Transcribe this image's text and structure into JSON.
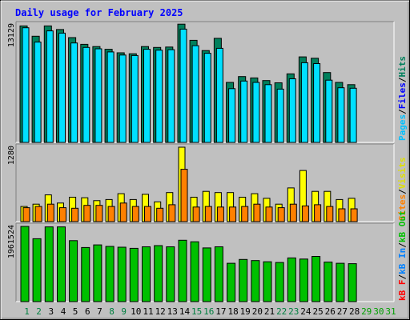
{
  "title": "Daily usage for February 2025",
  "colors": {
    "background": "#c0c0c0",
    "title": "#0000ff",
    "hits": "#00805c",
    "files": "#00c0ff",
    "pages": "#00e0ff",
    "visits": "#ffff00",
    "sites": "#ff8000",
    "kbin": "#0080ff",
    "kbout": "#00c000",
    "kbf": "#ff0000",
    "weekday_label": "#008040",
    "weekend_label": "#00a000",
    "empty_label": "#00a000"
  },
  "legend": {
    "top": [
      {
        "text": "Pages",
        "color": "#00c0ff"
      },
      {
        "text": "/",
        "color": "#000000"
      },
      {
        "text": "Files",
        "color": "#0000ff"
      },
      {
        "text": "/",
        "color": "#000000"
      },
      {
        "text": "Hits",
        "color": "#00805c"
      }
    ],
    "middle": [
      {
        "text": "Sites",
        "color": "#ff8000"
      },
      {
        "text": "/",
        "color": "#000000"
      },
      {
        "text": "Visits",
        "color": "#e0e000"
      }
    ],
    "bottom": [
      {
        "text": "kB F",
        "color": "#ff0000"
      },
      {
        "text": "/",
        "color": "#000000"
      },
      {
        "text": "kB In",
        "color": "#0080ff"
      },
      {
        "text": "/",
        "color": "#000000"
      },
      {
        "text": "kB Out",
        "color": "#00c000"
      }
    ]
  },
  "chart_data": [
    {
      "type": "bar",
      "panel": "hits",
      "ymax_label": "13129",
      "ylim": [
        0,
        13129
      ],
      "categories": [
        "1",
        "2",
        "3",
        "4",
        "5",
        "6",
        "7",
        "8",
        "9",
        "10",
        "11",
        "12",
        "13",
        "14",
        "15",
        "16",
        "17",
        "18",
        "19",
        "20",
        "21",
        "22",
        "23",
        "24",
        "25",
        "26",
        "27",
        "28",
        "29",
        "30",
        "31"
      ],
      "series": [
        {
          "name": "Hits",
          "values": [
            13000,
            11850,
            13000,
            12600,
            11700,
            10950,
            10700,
            10400,
            10000,
            9900,
            10700,
            10600,
            10650,
            13200,
            11400,
            10250,
            11620,
            6700,
            7350,
            7200,
            6900,
            6650,
            7650,
            9550,
            9400,
            7800,
            6700,
            6450,
            0,
            0,
            0
          ]
        },
        {
          "name": "Pages",
          "values": [
            12800,
            11200,
            12450,
            12200,
            11100,
            10600,
            10450,
            10100,
            9750,
            9700,
            10400,
            10300,
            10350,
            12650,
            10800,
            9950,
            10500,
            6000,
            6850,
            6700,
            6450,
            5950,
            7100,
            8900,
            8800,
            6950,
            6100,
            6050,
            0,
            0,
            0
          ]
        }
      ]
    },
    {
      "type": "bar",
      "panel": "visits",
      "ymax_label": "1280",
      "ylim": [
        0,
        1280
      ],
      "categories": [
        "1",
        "2",
        "3",
        "4",
        "5",
        "6",
        "7",
        "8",
        "9",
        "10",
        "11",
        "12",
        "13",
        "14",
        "15",
        "16",
        "17",
        "18",
        "19",
        "20",
        "21",
        "22",
        "23",
        "24",
        "25",
        "26",
        "27",
        "28",
        "29",
        "30",
        "31"
      ],
      "series": [
        {
          "name": "Visits",
          "values": [
            260,
            300,
            460,
            320,
            420,
            410,
            360,
            380,
            480,
            380,
            470,
            340,
            500,
            1280,
            420,
            520,
            500,
            500,
            420,
            480,
            400,
            300,
            580,
            880,
            520,
            520,
            380,
            400,
            0,
            0,
            0
          ]
        },
        {
          "name": "Sites",
          "values": [
            240,
            260,
            300,
            240,
            230,
            280,
            280,
            260,
            320,
            260,
            260,
            230,
            290,
            900,
            250,
            260,
            250,
            250,
            260,
            300,
            250,
            240,
            300,
            270,
            290,
            260,
            220,
            220,
            0,
            0,
            0
          ]
        }
      ]
    },
    {
      "type": "bar",
      "panel": "kbytes",
      "ymax_label": "1961524",
      "ylim": [
        0,
        1961524
      ],
      "categories": [
        "1",
        "2",
        "3",
        "4",
        "5",
        "6",
        "7",
        "8",
        "9",
        "10",
        "11",
        "12",
        "13",
        "14",
        "15",
        "16",
        "17",
        "18",
        "19",
        "20",
        "21",
        "22",
        "23",
        "24",
        "25",
        "26",
        "27",
        "28",
        "29",
        "30",
        "31"
      ],
      "series": [
        {
          "name": "KBytes",
          "values": [
            1961524,
            1640000,
            1950000,
            1950000,
            1590000,
            1410000,
            1480000,
            1440000,
            1420000,
            1390000,
            1430000,
            1460000,
            1430000,
            1600000,
            1560000,
            1400000,
            1430000,
            1000000,
            1100000,
            1070000,
            1040000,
            1020000,
            1140000,
            1110000,
            1180000,
            1030000,
            1000000,
            990000,
            0,
            0,
            0
          ]
        }
      ]
    }
  ],
  "x_labels": [
    {
      "text": "1",
      "weekend": true
    },
    {
      "text": "2",
      "weekend": true
    },
    {
      "text": "3",
      "weekend": false
    },
    {
      "text": "4",
      "weekend": false
    },
    {
      "text": "5",
      "weekend": false
    },
    {
      "text": "6",
      "weekend": false
    },
    {
      "text": "7",
      "weekend": false
    },
    {
      "text": "8",
      "weekend": true
    },
    {
      "text": "9",
      "weekend": true
    },
    {
      "text": "10",
      "weekend": false
    },
    {
      "text": "11",
      "weekend": false
    },
    {
      "text": "12",
      "weekend": false
    },
    {
      "text": "13",
      "weekend": false
    },
    {
      "text": "14",
      "weekend": false
    },
    {
      "text": "15",
      "weekend": true
    },
    {
      "text": "16",
      "weekend": true
    },
    {
      "text": "17",
      "weekend": false
    },
    {
      "text": "18",
      "weekend": false
    },
    {
      "text": "19",
      "weekend": false
    },
    {
      "text": "20",
      "weekend": false
    },
    {
      "text": "21",
      "weekend": false
    },
    {
      "text": "22",
      "weekend": true
    },
    {
      "text": "23",
      "weekend": true
    },
    {
      "text": "24",
      "weekend": false
    },
    {
      "text": "25",
      "weekend": false
    },
    {
      "text": "26",
      "weekend": false
    },
    {
      "text": "27",
      "weekend": false
    },
    {
      "text": "28",
      "weekend": false
    },
    {
      "text": "29",
      "weekend": true
    },
    {
      "text": "30",
      "weekend": true
    },
    {
      "text": "31",
      "weekend": false
    }
  ]
}
